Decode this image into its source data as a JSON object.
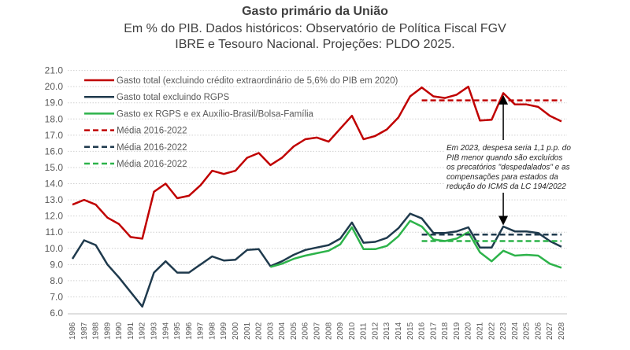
{
  "chart_data": {
    "type": "line",
    "title": "Gasto primário da União",
    "subtitle": [
      "Em % do PIB. Dados históricos: Observatório de Política Fiscal FGV",
      "IBRE e Tesouro Nacional. Projeções: PLDO 2025."
    ],
    "xlabel": "",
    "ylabel": "",
    "ylim": [
      6.0,
      21.0
    ],
    "yticks": [
      "6.0",
      "7.0",
      "8.0",
      "9.0",
      "10.0",
      "11.0",
      "12.0",
      "13.0",
      "14.0",
      "15.0",
      "16.0",
      "17.0",
      "18.0",
      "19.0",
      "20.0",
      "21.0"
    ],
    "grid": true,
    "legend_placement": "top-left",
    "x": [
      1986,
      1987,
      1988,
      1989,
      1990,
      1991,
      1992,
      1993,
      1994,
      1995,
      1996,
      1997,
      1998,
      1999,
      2000,
      2001,
      2002,
      2003,
      2004,
      2005,
      2006,
      2007,
      2008,
      2009,
      2010,
      2011,
      2012,
      2013,
      2014,
      2015,
      2016,
      2017,
      2018,
      2019,
      2020,
      2021,
      2022,
      2023,
      2024,
      2025,
      2026,
      2027,
      2028
    ],
    "series": [
      {
        "name": "Gasto total (excluindo crédito extraordinário de 5,6% do PIB em 2020)",
        "color": "#c00000",
        "style": "solid",
        "values": [
          12.7,
          13.0,
          12.7,
          11.9,
          11.5,
          10.7,
          10.6,
          13.5,
          14.0,
          13.1,
          13.25,
          13.9,
          14.8,
          14.6,
          14.8,
          15.6,
          15.9,
          15.15,
          15.6,
          16.3,
          16.75,
          16.85,
          16.6,
          17.4,
          18.2,
          16.75,
          16.95,
          17.35,
          18.1,
          19.4,
          19.95,
          19.4,
          19.3,
          19.5,
          20.0,
          17.9,
          17.95,
          19.6,
          18.9,
          18.9,
          18.75,
          18.2,
          17.85
        ]
      },
      {
        "name": "Gasto total excluindo RGPS",
        "color": "#1f3a4d",
        "style": "solid",
        "values": [
          9.35,
          10.5,
          10.2,
          9.0,
          8.2,
          7.3,
          6.4,
          8.5,
          9.2,
          8.5,
          8.5,
          9.0,
          9.5,
          9.25,
          9.3,
          9.9,
          9.95,
          8.9,
          9.2,
          9.6,
          9.9,
          10.05,
          10.2,
          10.6,
          11.6,
          10.35,
          10.4,
          10.65,
          11.25,
          12.15,
          11.85,
          10.95,
          10.95,
          11.05,
          11.3,
          10.05,
          10.05,
          11.35,
          11.05,
          11.05,
          10.95,
          10.45,
          10.1
        ]
      },
      {
        "name": "Gasto ex RGPS e ex Auxílio-Brasil/Bolsa-Família",
        "color": "#2db34a",
        "style": "solid",
        "values": [
          null,
          null,
          null,
          null,
          null,
          null,
          null,
          null,
          null,
          null,
          null,
          null,
          null,
          null,
          null,
          null,
          null,
          8.85,
          9.05,
          9.35,
          9.55,
          9.7,
          9.85,
          10.25,
          11.3,
          9.95,
          9.95,
          10.15,
          10.75,
          11.7,
          11.35,
          10.55,
          10.45,
          10.6,
          11.0,
          9.75,
          9.2,
          9.85,
          9.55,
          9.6,
          9.55,
          9.05,
          8.8
        ]
      },
      {
        "name": "Média 2016-2022",
        "color": "#c00000",
        "style": "dashed",
        "value": 19.15,
        "x_range": [
          2016,
          2028
        ]
      },
      {
        "name": "Média 2016-2022",
        "color": "#1f3a4d",
        "style": "dashed",
        "value": 10.85,
        "x_range": [
          2016,
          2028
        ]
      },
      {
        "name": "Média 2016-2022",
        "color": "#2db34a",
        "style": "dashed",
        "value": 10.45,
        "x_range": [
          2016,
          2028
        ]
      }
    ],
    "annotation": {
      "lines": [
        "Em 2023, despesa seria 1,1 p.p. do",
        "PIB menor quando são excluídos",
        "os precatórios \"despedalados\" e as",
        "compensações para estados da",
        "redução do ICMS da LC 194/2022"
      ],
      "x": 2023
    }
  }
}
